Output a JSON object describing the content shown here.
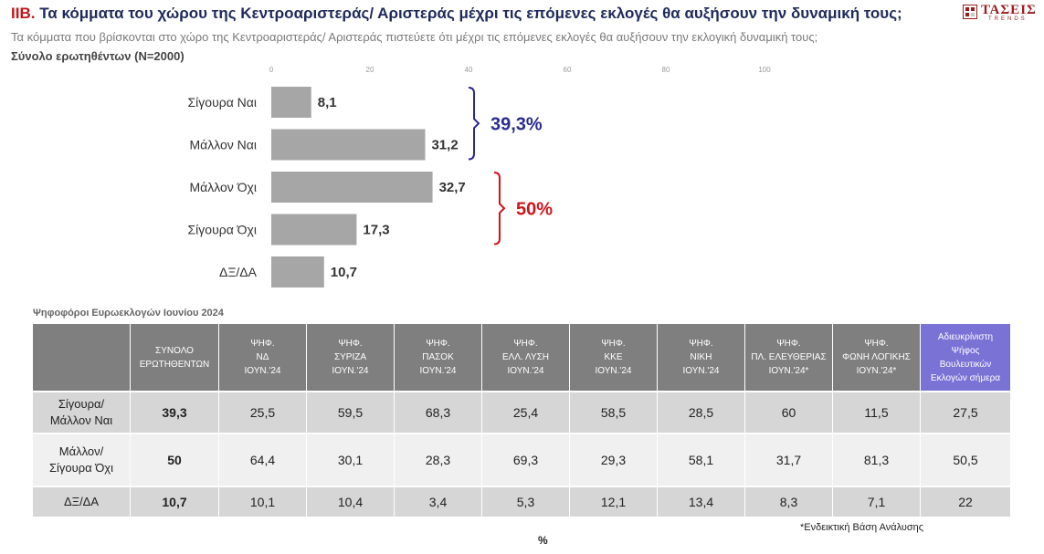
{
  "header": {
    "title_code": "ΙΙΒ.",
    "title": "Τα κόμματα του χώρου της Κεντροαριστεράς/ Αριστεράς μέχρι τις επόμενες εκλογές θα αυξήσουν την δυναμική τους;",
    "subtitle": "Τα κόμματα που βρίσκονται στο χώρο της Κεντροαριστεράς/ Αριστεράς πιστεύετε ότι μέχρι τις επόμενες εκλογές θα αυξήσουν την εκλογική δυναμική τους;",
    "base": "Σύνολο ερωτηθέντων (N=2000)"
  },
  "logo": {
    "word": "ΤΑΣΕΙΣ",
    "sub": "TRENDS"
  },
  "chart_data": {
    "type": "bar",
    "orientation": "horizontal",
    "categories": [
      "Σίγουρα Ναι",
      "Μάλλον Ναι",
      "Μάλλον Όχι",
      "Σίγουρα Όχι",
      "ΔΞ/ΔΑ"
    ],
    "values": [
      8.1,
      31.2,
      32.7,
      17.3,
      10.7
    ],
    "value_labels": [
      "8,1",
      "31,2",
      "32,7",
      "17,3",
      "10,7"
    ],
    "xlim": [
      0,
      100
    ],
    "xticks": [
      0,
      20,
      40,
      60,
      80,
      100
    ],
    "bar_color": "#a6a6a6",
    "grid": false,
    "brackets": [
      {
        "label": "39,3%",
        "from": 0,
        "to": 1,
        "color": "#2b2b8f"
      },
      {
        "label": "50%",
        "from": 2,
        "to": 3,
        "color": "#d0141a"
      }
    ]
  },
  "table": {
    "caption": "Ψηφοφόροι Ευρωεκλογών Ιουνίου 2024",
    "columns": [
      {
        "lines": [
          "ΣΥΝΟΛΟ",
          "ΕΡΩΤΗΘΕΝΤΩΝ"
        ]
      },
      {
        "lines": [
          "ΨΗΦ.",
          "ΝΔ",
          "ΙΟΥΝ.'24"
        ]
      },
      {
        "lines": [
          "ΨΗΦ.",
          "ΣΥΡΙΖΑ",
          "ΙΟΥΝ.'24"
        ]
      },
      {
        "lines": [
          "ΨΗΦ.",
          "ΠΑΣΟΚ",
          "ΙΟΥΝ.'24"
        ]
      },
      {
        "lines": [
          "ΨΗΦ.",
          "ΕΛΛ. ΛΥΣΗ",
          "ΙΟΥΝ.'24"
        ]
      },
      {
        "lines": [
          "ΨΗΦ.",
          "ΚΚΕ",
          "ΙΟΥΝ.'24"
        ]
      },
      {
        "lines": [
          "ΨΗΦ.",
          "ΝΙΚΗ",
          "ΙΟΥΝ.'24"
        ]
      },
      {
        "lines": [
          "ΨΗΦ.",
          "ΠΛ. ΕΛΕΥΘΕΡΙΑΣ",
          "ΙΟΥΝ.'24*"
        ]
      },
      {
        "lines": [
          "ΨΗΦ.",
          "ΦΩΝΗ ΛΟΓΙΚΗΣ",
          "ΙΟΥΝ.'24*"
        ]
      },
      {
        "lines": [
          "Αδιευκρίνιστη",
          "Ψήφος",
          "Βουλευτικών",
          "Εκλογών σήμερα"
        ],
        "highlight": true,
        "color": "#7b72d6"
      }
    ],
    "rows": [
      {
        "label": [
          "Σίγουρα/",
          "Μάλλον Ναι"
        ],
        "values": [
          "39,3",
          "25,5",
          "59,5",
          "68,3",
          "25,4",
          "58,5",
          "28,5",
          "60",
          "11,5",
          "27,5"
        ]
      },
      {
        "label": [
          "Μάλλον/",
          "Σίγουρα Όχι"
        ],
        "values": [
          "50",
          "64,4",
          "30,1",
          "28,3",
          "69,3",
          "29,3",
          "58,1",
          "31,7",
          "81,3",
          "50,5"
        ]
      },
      {
        "label": [
          "ΔΞ/ΔΑ"
        ],
        "values": [
          "10,7",
          "10,1",
          "10,4",
          "3,4",
          "5,3",
          "12,1",
          "13,4",
          "8,3",
          "7,1",
          "22"
        ]
      }
    ],
    "footnote": "*Ενδεικτική Βάση Ανάλυσης",
    "unit": "%"
  }
}
